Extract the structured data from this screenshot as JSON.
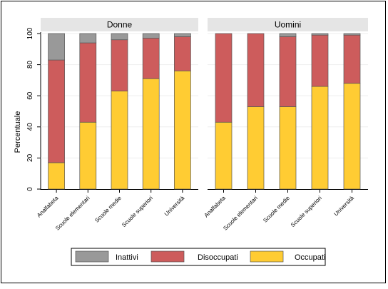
{
  "chart_data": {
    "type": "bar",
    "stacked": true,
    "orientation": "vertical",
    "ylabel": "Percentuale",
    "ylim": [
      0,
      100
    ],
    "yticks": [
      0,
      20,
      40,
      60,
      80,
      100
    ],
    "grid": true,
    "legend_position": "bottom",
    "categories": [
      "Analfabeta",
      "Scuole elementari",
      "Scuole medie",
      "Scuole superiori",
      "Università"
    ],
    "series_names": [
      "Occupati",
      "Disoccupati",
      "Inattivi"
    ],
    "colors": {
      "Occupati": "#ffcc33",
      "Disoccupati": "#cd5c5c",
      "Inattivi": "#999999"
    },
    "panels": [
      {
        "title": "Donne",
        "series": [
          {
            "name": "Occupati",
            "values": [
              17,
              43,
              63,
              71,
              76
            ]
          },
          {
            "name": "Disoccupati",
            "values": [
              66,
              51,
              33,
              26,
              22
            ]
          },
          {
            "name": "Inattivi",
            "values": [
              17,
              6,
              4,
              3,
              2
            ]
          }
        ]
      },
      {
        "title": "Uomini",
        "series": [
          {
            "name": "Occupati",
            "values": [
              43,
              53,
              53,
              66,
              68
            ]
          },
          {
            "name": "Disoccupati",
            "values": [
              57,
              47,
              45,
              33,
              31
            ]
          },
          {
            "name": "Inattivi",
            "values": [
              0,
              0,
              2,
              1,
              1
            ]
          }
        ]
      }
    ],
    "legend": [
      "Inattivi",
      "Disoccupati",
      "Occupati"
    ]
  }
}
